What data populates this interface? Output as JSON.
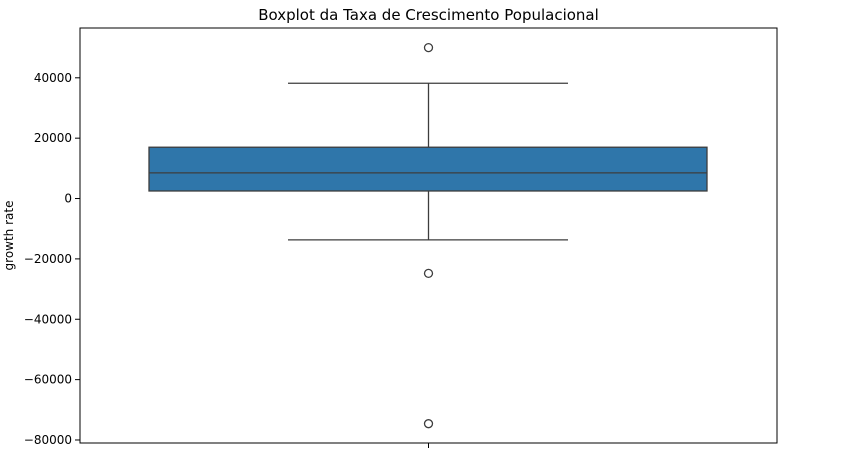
{
  "chart_data": {
    "type": "boxplot",
    "title": "Boxplot da Taxa de Crescimento Populacional",
    "xlabel": "",
    "ylabel": "growth rate",
    "ylim": [
      -81000,
      56500
    ],
    "yticks": [
      -80000,
      -60000,
      -40000,
      -20000,
      0,
      20000,
      40000
    ],
    "ytick_labels": [
      "−80000",
      "−60000",
      "−40000",
      "−20000",
      "0",
      "20000",
      "40000"
    ],
    "grid": false,
    "legend": "none",
    "box": {
      "q1": 2500,
      "median": 8500,
      "q3": 17000,
      "whisker_low": -13700,
      "whisker_high": 38200,
      "outliers": [
        50000,
        -24800,
        -74600
      ]
    },
    "colors": {
      "box_fill": "#2f76aa",
      "line": "#3d3d3d",
      "frame": "#000000"
    }
  }
}
